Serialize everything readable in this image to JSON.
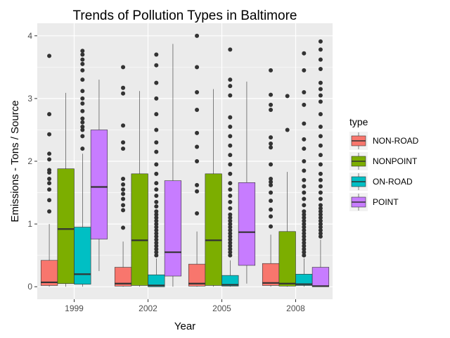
{
  "chart_data": {
    "type": "boxplot",
    "title": "Trends of Pollution Types in Baltimore",
    "xlabel": "Year",
    "ylabel": "Emissions - Tons / Source",
    "categories": [
      "1999",
      "2002",
      "2005",
      "2008"
    ],
    "ylim": [
      -0.2,
      4.2
    ],
    "yticks": [
      0,
      1,
      2,
      3,
      4
    ],
    "grid": true,
    "legend": {
      "title": "type",
      "position": "right"
    },
    "series": [
      {
        "name": "NON-ROAD",
        "color": "#F8766D",
        "boxes": [
          {
            "whisker_low": 0,
            "q1": 0.02,
            "median": 0.07,
            "q3": 0.42,
            "whisker_high": 1.0,
            "outliers": [
              1.2,
              1.38,
              1.55,
              1.65,
              1.72,
              1.82,
              1.86,
              2.03,
              2.12,
              2.43,
              2.75,
              3.68
            ]
          },
          {
            "whisker_low": 0,
            "q1": 0.01,
            "median": 0.05,
            "q3": 0.31,
            "whisker_high": 0.72,
            "outliers": [
              0.94,
              1.22,
              1.3,
              1.4,
              1.48,
              1.55,
              1.63,
              1.72,
              2.2,
              2.3,
              2.57,
              3.08,
              3.17,
              3.5
            ]
          },
          {
            "whisker_low": 0,
            "q1": 0.01,
            "median": 0.05,
            "q3": 0.36,
            "whisker_high": 0.88,
            "outliers": [
              1.17,
              1.52,
              1.62,
              2.0,
              2.23,
              2.45,
              2.82,
              3.1,
              3.5,
              4.0
            ]
          },
          {
            "whisker_low": 0,
            "q1": 0.02,
            "median": 0.06,
            "q3": 0.37,
            "whisker_high": 0.83,
            "outliers": [
              0.96,
              1.12,
              1.23,
              1.37,
              1.5,
              1.62,
              1.67,
              1.72,
              1.95,
              2.22,
              2.28,
              2.38,
              2.82,
              2.9,
              3.06,
              3.45
            ]
          }
        ]
      },
      {
        "name": "NONPOINT",
        "color": "#7CAE00",
        "boxes": [
          {
            "whisker_low": 0,
            "q1": 0.05,
            "median": 0.92,
            "q3": 1.88,
            "whisker_high": 3.09,
            "outliers": []
          },
          {
            "whisker_low": 0,
            "q1": 0.02,
            "median": 0.74,
            "q3": 1.8,
            "whisker_high": 3.12,
            "outliers": []
          },
          {
            "whisker_low": 0,
            "q1": 0.02,
            "median": 0.74,
            "q3": 1.8,
            "whisker_high": 3.15,
            "outliers": []
          },
          {
            "whisker_low": 0,
            "q1": 0.01,
            "median": 0.05,
            "q3": 0.88,
            "whisker_high": 1.83,
            "outliers": [
              2.5,
              3.04
            ]
          }
        ]
      },
      {
        "name": "ON-ROAD",
        "color": "#00BFC4",
        "boxes": [
          {
            "whisker_low": 0,
            "q1": 0.04,
            "median": 0.2,
            "q3": 0.95,
            "whisker_high": 2.12,
            "outliers": [
              2.2,
              2.4,
              2.5,
              2.55,
              2.62,
              2.68,
              2.8,
              2.92,
              3.0,
              3.12,
              3.3,
              3.45,
              3.55,
              3.62,
              3.7,
              3.76
            ]
          },
          {
            "whisker_low": 0,
            "q1": 0.0,
            "median": 0.02,
            "q3": 0.19,
            "whisker_high": 0.45,
            "outliers": [
              0.5,
              0.55,
              0.6,
              0.65,
              0.7,
              0.75,
              0.8,
              0.85,
              0.9,
              0.95,
              1.0,
              1.05,
              1.1,
              1.15,
              1.2,
              1.28,
              1.35,
              1.45,
              1.55,
              1.65,
              1.8,
              1.95,
              2.15,
              2.3,
              2.5,
              2.75,
              3.0,
              3.25,
              3.53,
              3.7
            ]
          },
          {
            "whisker_low": 0,
            "q1": 0.01,
            "median": 0.03,
            "q3": 0.18,
            "whisker_high": 0.42,
            "outliers": [
              0.5,
              0.55,
              0.6,
              0.65,
              0.7,
              0.75,
              0.8,
              0.85,
              0.9,
              0.95,
              1.0,
              1.05,
              1.1,
              1.15,
              1.25,
              1.35,
              1.45,
              1.55,
              1.65,
              1.8,
              1.95,
              2.1,
              2.25,
              2.4,
              2.55,
              2.7,
              3.05,
              3.2,
              3.3,
              3.78
            ]
          },
          {
            "whisker_low": 0,
            "q1": 0.02,
            "median": 0.04,
            "q3": 0.2,
            "whisker_high": 0.45,
            "outliers": [
              0.5,
              0.55,
              0.6,
              0.65,
              0.7,
              0.75,
              0.8,
              0.85,
              0.9,
              0.95,
              1.0,
              1.05,
              1.1,
              1.15,
              1.2,
              1.3,
              1.4,
              1.5,
              1.6,
              1.7,
              1.85,
              2.0,
              2.2,
              2.35,
              2.6,
              2.9,
              3.1,
              3.45,
              3.72
            ]
          }
        ]
      },
      {
        "name": "POINT",
        "color": "#C77CFF",
        "boxes": [
          {
            "whisker_low": 0.25,
            "q1": 0.76,
            "median": 1.59,
            "q3": 2.5,
            "whisker_high": 3.3,
            "outliers": []
          },
          {
            "whisker_low": 0,
            "q1": 0.17,
            "median": 0.55,
            "q3": 1.69,
            "whisker_high": 3.87,
            "outliers": []
          },
          {
            "whisker_low": 0.05,
            "q1": 0.34,
            "median": 0.87,
            "q3": 1.66,
            "whisker_high": 3.27,
            "outliers": []
          },
          {
            "whisker_low": 0,
            "q1": 0.0,
            "median": 0.01,
            "q3": 0.31,
            "whisker_high": 0.75,
            "outliers": [
              0.8,
              0.85,
              0.9,
              0.95,
              1.0,
              1.05,
              1.1,
              1.15,
              1.2,
              1.25,
              1.3,
              1.4,
              1.5,
              1.6,
              1.7,
              1.8,
              1.95,
              2.1,
              2.25,
              2.4,
              2.55,
              2.75,
              2.95,
              3.05,
              3.15,
              3.25,
              3.47,
              3.62,
              3.78,
              3.91
            ]
          }
        ]
      }
    ]
  }
}
